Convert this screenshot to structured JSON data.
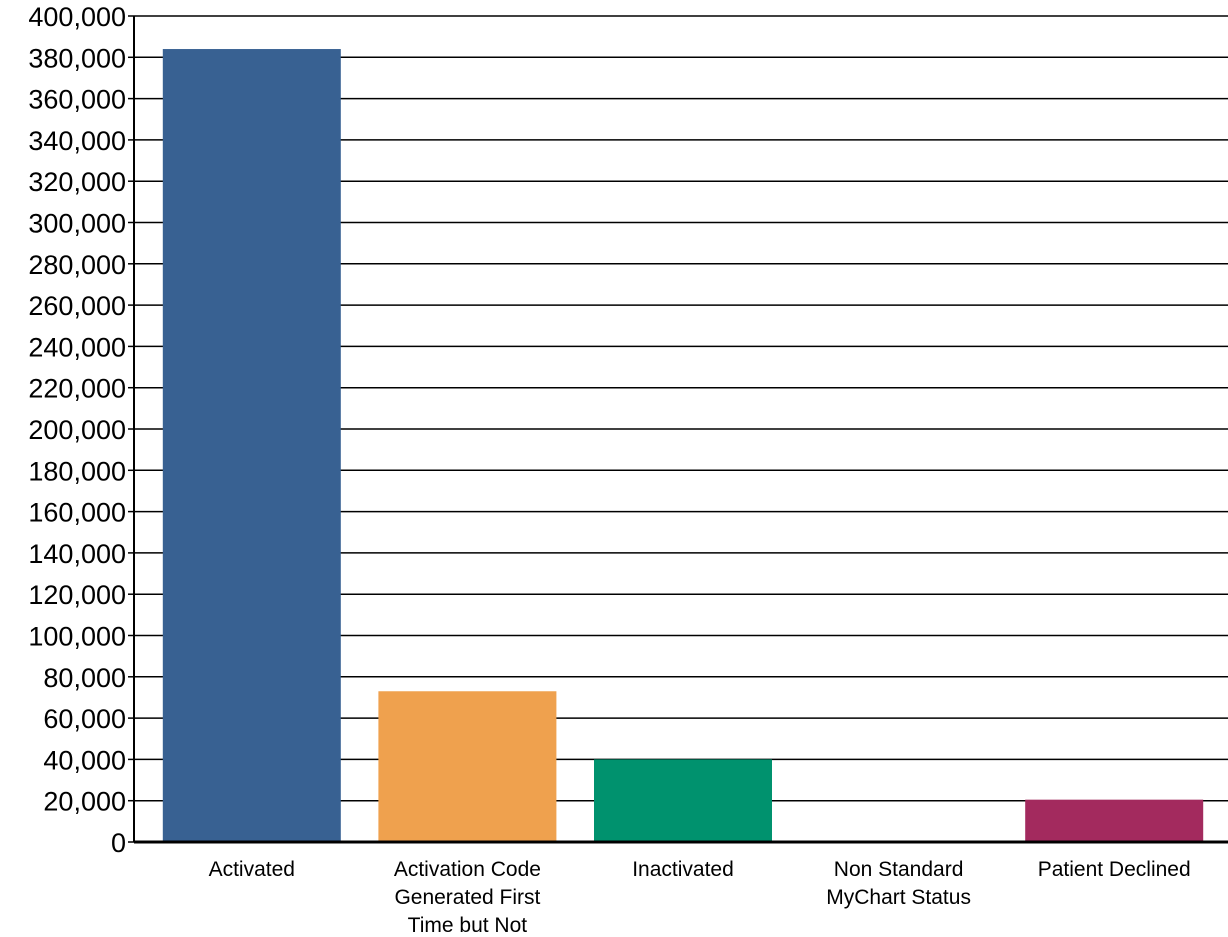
{
  "chart_data": {
    "type": "bar",
    "categories": [
      [
        "Activated"
      ],
      [
        "Activation Code",
        "Generated First",
        "Time but Not"
      ],
      [
        "Inactivated"
      ],
      [
        "Non Standard",
        "MyChart Status"
      ],
      [
        "Patient Declined"
      ]
    ],
    "values": [
      384000,
      73000,
      40000,
      0,
      20500
    ],
    "colors": [
      "#386192",
      "#efa14e",
      "#00926e",
      "#999999",
      "#a32a5e"
    ],
    "ylim": [
      0,
      400000
    ],
    "yticks": [
      "0",
      "20,000",
      "40,000",
      "60,000",
      "80,000",
      "100,000",
      "120,000",
      "140,000",
      "160,000",
      "180,000",
      "200,000",
      "220,000",
      "240,000",
      "260,000",
      "280,000",
      "300,000",
      "320,000",
      "340,000",
      "360,000",
      "380,000",
      "400,000"
    ],
    "grid": true,
    "title": "",
    "xlabel": "",
    "ylabel": ""
  }
}
